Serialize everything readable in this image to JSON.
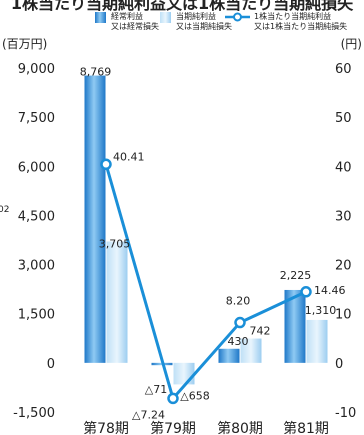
{
  "chart_data": {
    "type": "bar",
    "title": "1株当たり当期純利益又は1株当たり当期純損失",
    "categories": [
      "第78期",
      "第79期",
      "第80期",
      "第81期"
    ],
    "highlight_category": "第81期",
    "left_axis": {
      "unit": "(百万円)",
      "ylim": [
        -1500,
        9000
      ],
      "ticks": [
        "9,000",
        "7,500",
        "6,000",
        "4,500",
        "3,000",
        "1,500",
        "0",
        "-1,500"
      ],
      "tick_values": [
        9000,
        7500,
        6000,
        4500,
        3000,
        1500,
        0,
        -1500
      ]
    },
    "right_axis": {
      "unit": "(円)",
      "ylim": [
        -10,
        60
      ],
      "ticks": [
        "60",
        "50",
        "40",
        "30",
        "20",
        "10",
        "0",
        "-10"
      ],
      "tick_values": [
        60,
        50,
        40,
        30,
        20,
        10,
        0,
        -10
      ]
    },
    "series": [
      {
        "name": "経常利益\n又は経常損失",
        "type": "bar",
        "axis": "left",
        "values": [
          8769,
          -71,
          430,
          2225
        ],
        "labels": [
          "8,769",
          "△71",
          "430",
          "2,225"
        ]
      },
      {
        "name": "当期純利益\n又は当期純損失",
        "type": "bar",
        "axis": "left",
        "values": [
          3705,
          -658,
          742,
          1310
        ],
        "labels": [
          "3,705",
          "△658",
          "742",
          "1,310"
        ]
      },
      {
        "name": "1株当たり当期純利益\n又は1株当たり当期純損失",
        "type": "line",
        "axis": "right",
        "values": [
          40.41,
          -7.24,
          8.2,
          14.46
        ],
        "labels": [
          "40.41",
          "△7.24",
          "8.20",
          "14.46"
        ]
      }
    ],
    "colors": {
      "bar1": "#2e8fd8",
      "bar2": "#a9d3f2",
      "line": "#1a8fd8",
      "marker_fill": "#ffffff",
      "highlight_text": "#1a8fd8",
      "axis_text": "#222222",
      "legend_fill_edge": "#ffffff"
    },
    "grid": false,
    "legend_position": "top"
  },
  "decor": {
    "left_edge_fragment": "02"
  }
}
